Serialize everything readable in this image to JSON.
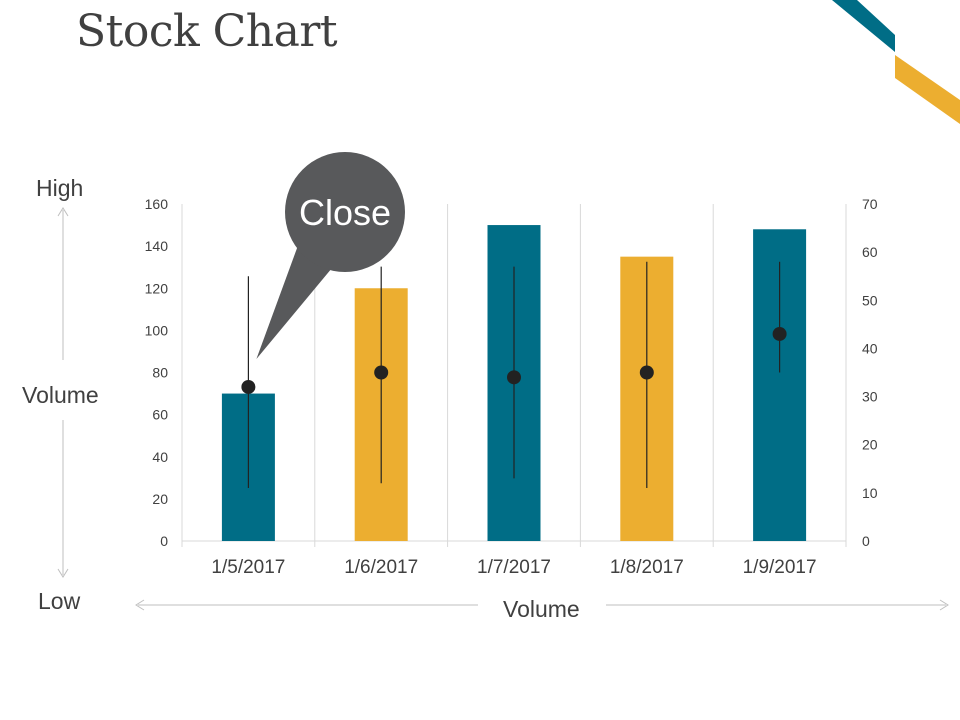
{
  "title": "Stock Chart",
  "side_labels": {
    "high": "High",
    "volume_left": "Volume",
    "low": "Low",
    "volume_bottom": "Volume"
  },
  "callout": {
    "text": "Close",
    "color": "#58595b"
  },
  "colors": {
    "teal": "#006d86",
    "gold": "#ecae30",
    "marker": "#222222",
    "grid": "#d9d9d9",
    "axis_text": "#404040"
  },
  "chart_data": {
    "type": "bar",
    "title": "",
    "categories": [
      "1/5/2017",
      "1/6/2017",
      "1/7/2017",
      "1/8/2017",
      "1/9/2017"
    ],
    "series": [
      {
        "name": "",
        "axis": "left",
        "values": [
          70,
          120,
          150,
          135,
          148
        ],
        "colors": [
          "#006d86",
          "#ecae30",
          "#006d86",
          "#ecae30",
          "#006d86"
        ]
      },
      {
        "name": "",
        "axis": "right",
        "high": [
          55,
          57,
          57,
          58,
          58
        ],
        "low": [
          11,
          12,
          13,
          11,
          35
        ],
        "close": [
          32,
          35,
          34,
          35,
          43
        ]
      }
    ],
    "ylim_left": [
      0,
      160
    ],
    "yticks_left": [
      0,
      20,
      40,
      60,
      80,
      100,
      120,
      140,
      160
    ],
    "ylim_right": [
      0,
      70
    ],
    "yticks_right": [
      0,
      10,
      20,
      30,
      40,
      50,
      60,
      70
    ],
    "grid": "vertical",
    "legend": "none"
  }
}
